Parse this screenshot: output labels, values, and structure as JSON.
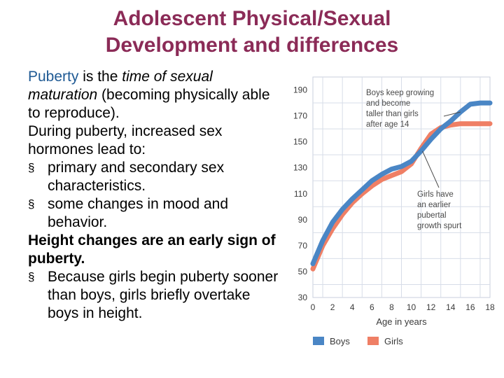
{
  "slide": {
    "title_line1": "Adolescent Physical/Sexual",
    "title_line2": "Development and differences",
    "puberty_kw": "Puberty",
    "puberty_is": " is the ",
    "puberty_time": "time of sexual",
    "puberty_maturation": "maturation",
    "puberty_rest": " (becoming physically able to reproduce).",
    "during": "During puberty, increased sex hormones lead to:",
    "bullet_mark": "§",
    "bullet1": "primary and secondary sex characteristics.",
    "bullet2": "some changes in mood and behavior.",
    "height_heading": "Height changes are an early sign of puberty.",
    "bullet3": "Because girls begin puberty sooner than boys, girls briefly overtake boys in height."
  },
  "chart_data": {
    "type": "line",
    "xlabel": "Age in years",
    "ylabel": "",
    "xlim": [
      0,
      18
    ],
    "ylim": [
      30,
      200
    ],
    "x_ticks": [
      0,
      2,
      4,
      6,
      8,
      10,
      12,
      14,
      16,
      18
    ],
    "y_ticks": [
      30,
      50,
      70,
      90,
      110,
      130,
      150,
      170,
      190
    ],
    "grid": true,
    "legend_position": "bottom",
    "series": [
      {
        "name": "Boys",
        "color": "#4a86c5",
        "x": [
          0,
          1,
          2,
          3,
          4,
          5,
          6,
          7,
          8,
          9,
          10,
          11,
          12,
          13,
          14,
          15,
          16,
          17,
          18
        ],
        "values": [
          56,
          74,
          88,
          98,
          106,
          113,
          120,
          125,
          129,
          131,
          135,
          143,
          152,
          160,
          166,
          173,
          179,
          180,
          180
        ]
      },
      {
        "name": "Girls",
        "color": "#ef7f65",
        "x": [
          0,
          1,
          2,
          3,
          4,
          5,
          6,
          7,
          8,
          9,
          10,
          11,
          12,
          13,
          14,
          15,
          16,
          17,
          18
        ],
        "values": [
          52,
          70,
          83,
          94,
          103,
          110,
          116,
          121,
          124,
          127,
          133,
          145,
          156,
          161,
          163,
          164,
          164,
          164,
          164
        ]
      }
    ],
    "annotations": [
      {
        "text": [
          "Boys keep growing",
          "and become",
          "taller than girls",
          "after age 14"
        ],
        "points_to_age": 15
      },
      {
        "text": [
          "Girls have",
          "an earlier",
          "pubertal",
          "growth spurt"
        ],
        "points_to_age": 11
      }
    ]
  }
}
